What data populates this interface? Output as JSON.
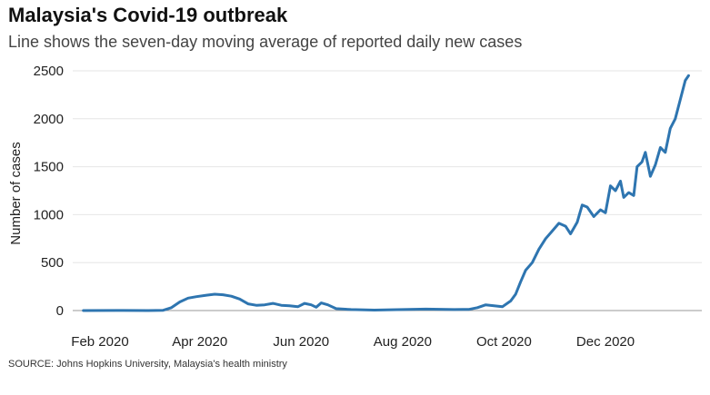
{
  "header": {
    "title": "Malaysia's Covid-19 outbreak",
    "subtitle": "Line shows the seven-day moving average of reported daily new cases"
  },
  "footer": {
    "source": "SOURCE: Johns Hopkins University, Malaysia's health ministry"
  },
  "colors": {
    "line": "#2e75b0",
    "grid": "#e6e6e6",
    "axis": "#9a9a9a"
  },
  "chart_data": {
    "type": "line",
    "title": "Malaysia's Covid-19 outbreak",
    "subtitle": "Line shows the seven-day moving average of reported daily new cases",
    "ylabel": "Number of cases",
    "xlabel": "",
    "ylim": [
      0,
      2500
    ],
    "yticks": [
      0,
      500,
      1000,
      1500,
      2000,
      2500
    ],
    "xlim": [
      "2020-01-22",
      "2021-01-20"
    ],
    "xticks": [
      {
        "date": "2020-02-01",
        "label": "Feb 2020"
      },
      {
        "date": "2020-04-01",
        "label": "Apr 2020"
      },
      {
        "date": "2020-06-01",
        "label": "Jun 2020"
      },
      {
        "date": "2020-08-01",
        "label": "Aug 2020"
      },
      {
        "date": "2020-10-01",
        "label": "Oct 2020"
      },
      {
        "date": "2020-12-01",
        "label": "Dec 2020"
      }
    ],
    "grid": true,
    "legend": "none",
    "series": [
      {
        "values": [
          [
            "2020-01-22",
            0
          ],
          [
            "2020-02-15",
            1
          ],
          [
            "2020-03-01",
            0
          ],
          [
            "2020-03-10",
            3
          ],
          [
            "2020-03-15",
            30
          ],
          [
            "2020-03-20",
            90
          ],
          [
            "2020-03-25",
            130
          ],
          [
            "2020-03-30",
            145
          ],
          [
            "2020-04-05",
            160
          ],
          [
            "2020-04-10",
            170
          ],
          [
            "2020-04-15",
            165
          ],
          [
            "2020-04-20",
            150
          ],
          [
            "2020-04-25",
            120
          ],
          [
            "2020-04-30",
            70
          ],
          [
            "2020-05-05",
            55
          ],
          [
            "2020-05-10",
            60
          ],
          [
            "2020-05-15",
            75
          ],
          [
            "2020-05-20",
            55
          ],
          [
            "2020-05-25",
            50
          ],
          [
            "2020-05-30",
            40
          ],
          [
            "2020-06-03",
            75
          ],
          [
            "2020-06-07",
            60
          ],
          [
            "2020-06-10",
            35
          ],
          [
            "2020-06-13",
            80
          ],
          [
            "2020-06-17",
            60
          ],
          [
            "2020-06-22",
            20
          ],
          [
            "2020-07-01",
            10
          ],
          [
            "2020-07-15",
            5
          ],
          [
            "2020-08-01",
            10
          ],
          [
            "2020-08-15",
            15
          ],
          [
            "2020-09-01",
            10
          ],
          [
            "2020-09-10",
            12
          ],
          [
            "2020-09-15",
            30
          ],
          [
            "2020-09-20",
            60
          ],
          [
            "2020-09-25",
            50
          ],
          [
            "2020-09-30",
            40
          ],
          [
            "2020-10-05",
            100
          ],
          [
            "2020-10-08",
            170
          ],
          [
            "2020-10-11",
            300
          ],
          [
            "2020-10-14",
            420
          ],
          [
            "2020-10-18",
            500
          ],
          [
            "2020-10-22",
            640
          ],
          [
            "2020-10-26",
            750
          ],
          [
            "2020-10-30",
            830
          ],
          [
            "2020-11-03",
            910
          ],
          [
            "2020-11-07",
            880
          ],
          [
            "2020-11-10",
            800
          ],
          [
            "2020-11-14",
            920
          ],
          [
            "2020-11-17",
            1100
          ],
          [
            "2020-11-20",
            1080
          ],
          [
            "2020-11-24",
            980
          ],
          [
            "2020-11-28",
            1050
          ],
          [
            "2020-12-01",
            1020
          ],
          [
            "2020-12-04",
            1300
          ],
          [
            "2020-12-07",
            1250
          ],
          [
            "2020-12-10",
            1350
          ],
          [
            "2020-12-12",
            1180
          ],
          [
            "2020-12-15",
            1230
          ],
          [
            "2020-12-18",
            1200
          ],
          [
            "2020-12-20",
            1500
          ],
          [
            "2020-12-23",
            1550
          ],
          [
            "2020-12-25",
            1650
          ],
          [
            "2020-12-28",
            1400
          ],
          [
            "2020-12-31",
            1520
          ],
          [
            "2021-01-03",
            1700
          ],
          [
            "2021-01-06",
            1650
          ],
          [
            "2021-01-09",
            1900
          ],
          [
            "2021-01-12",
            2000
          ],
          [
            "2021-01-15",
            2200
          ],
          [
            "2021-01-18",
            2400
          ],
          [
            "2021-01-20",
            2450
          ]
        ]
      }
    ]
  }
}
